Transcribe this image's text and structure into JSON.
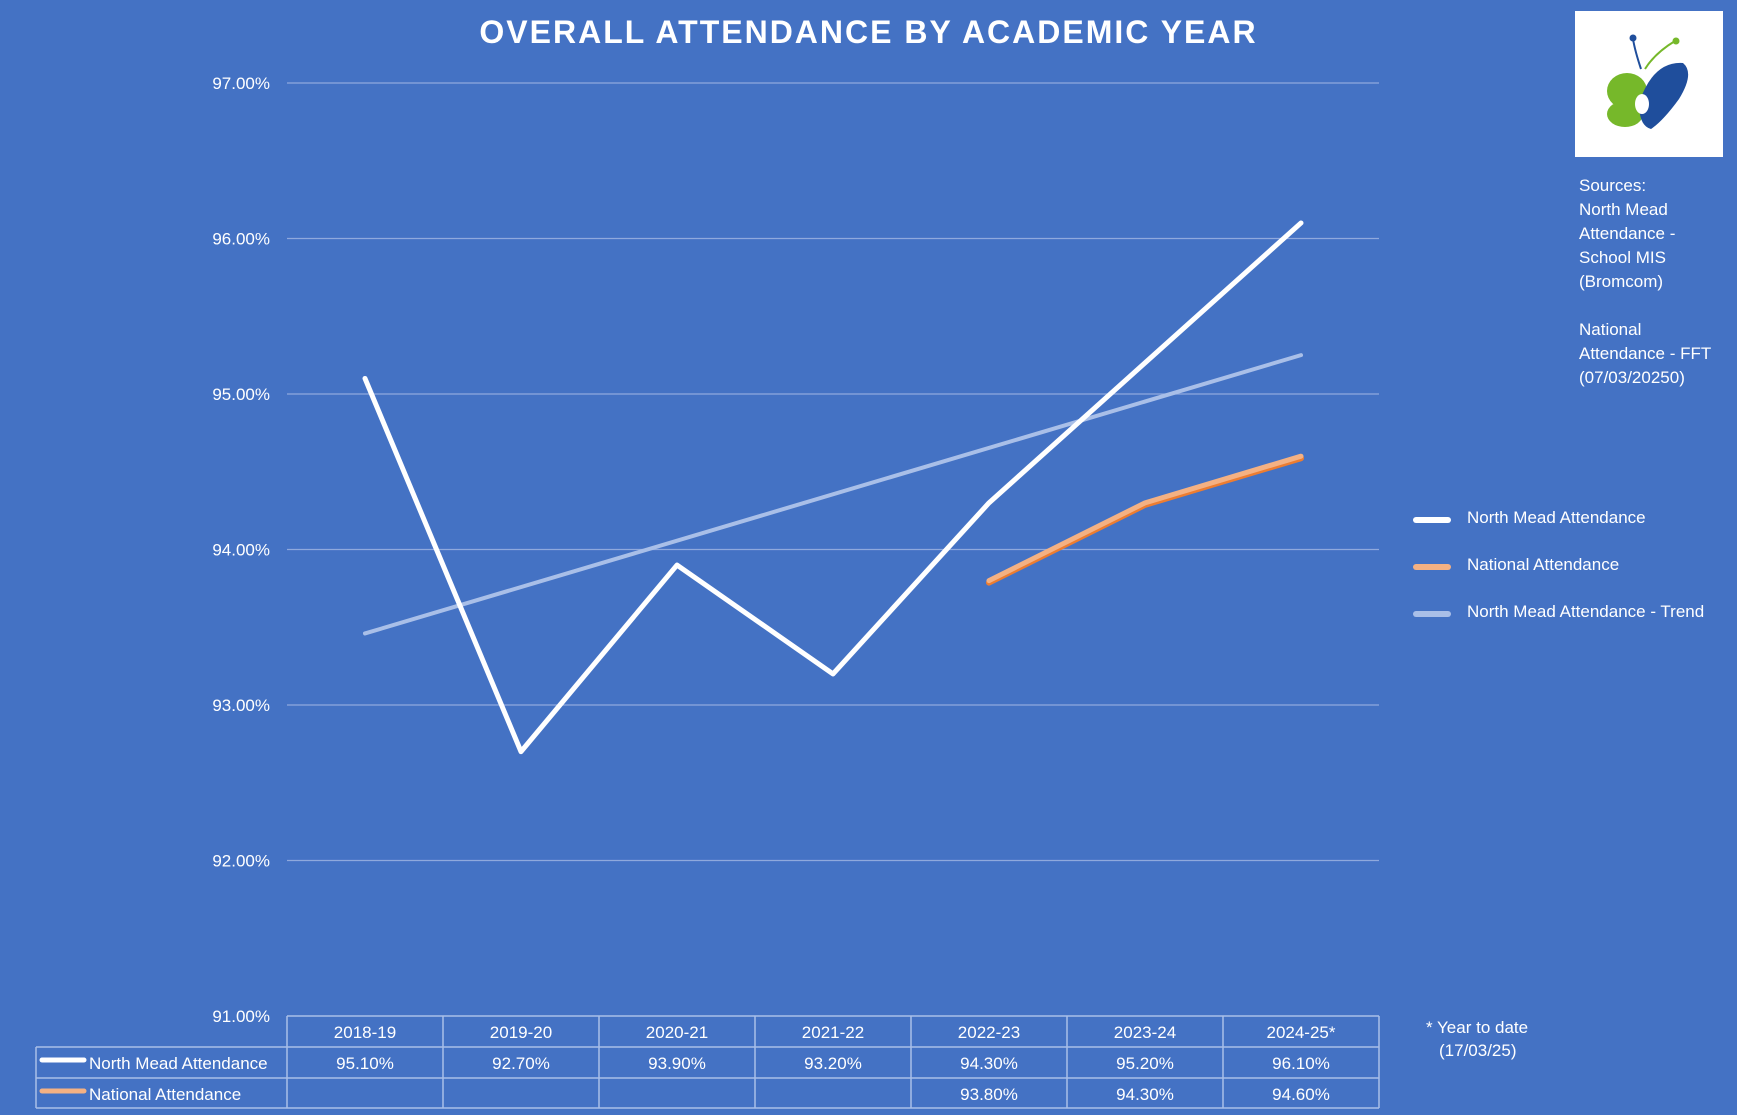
{
  "title": "OVERALL ATTENDANCE BY ACADEMIC YEAR",
  "sources": {
    "heading": "Sources:",
    "lines": [
      "North Mead",
      "Attendance -",
      "School MIS",
      "(Bromcom)",
      "",
      "National",
      "Attendance - FFT",
      "(07/03/20250)"
    ]
  },
  "footnote": {
    "line1": "* Year to date",
    "line2": "(17/03/25)"
  },
  "logo": {
    "icon": "butterfly-logo-icon",
    "colors": {
      "left_wing": "#76b82a",
      "right_wing": "#1f4e9c"
    }
  },
  "chart_data": {
    "type": "line",
    "title": "OVERALL ATTENDANCE BY ACADEMIC YEAR",
    "categories": [
      "2018-19",
      "2019-20",
      "2020-21",
      "2021-22",
      "2022-23",
      "2023-24",
      "2024-25*"
    ],
    "ylim": [
      91,
      97
    ],
    "y_ticks": [
      {
        "value": 91,
        "label": "91.00%"
      },
      {
        "value": 92,
        "label": "92.00%"
      },
      {
        "value": 93,
        "label": "93.00%"
      },
      {
        "value": 94,
        "label": "94.00%"
      },
      {
        "value": 95,
        "label": "95.00%"
      },
      {
        "value": 96,
        "label": "96.00%"
      },
      {
        "value": 97,
        "label": "97.00%"
      }
    ],
    "grid": true,
    "legend_position": "right",
    "series": [
      {
        "name": "North Mead Attendance",
        "color": "#ffffff",
        "values": [
          95.1,
          92.7,
          93.9,
          93.2,
          94.3,
          95.2,
          96.1
        ],
        "labels": [
          "95.10%",
          "92.70%",
          "93.90%",
          "93.20%",
          "94.30%",
          "95.20%",
          "96.10%"
        ]
      },
      {
        "name": "National Attendance",
        "color": "#f4b183",
        "shadow": "#ed7d31",
        "values": [
          null,
          null,
          null,
          null,
          93.8,
          94.3,
          94.6
        ],
        "labels": [
          "",
          "",
          "",
          "",
          "93.80%",
          "94.30%",
          "94.60%"
        ]
      }
    ],
    "trend": {
      "name": "North Mead Attendance - Trend",
      "color": "#a9bfe8",
      "start": 93.46,
      "end": 95.25
    },
    "data_table": true
  }
}
